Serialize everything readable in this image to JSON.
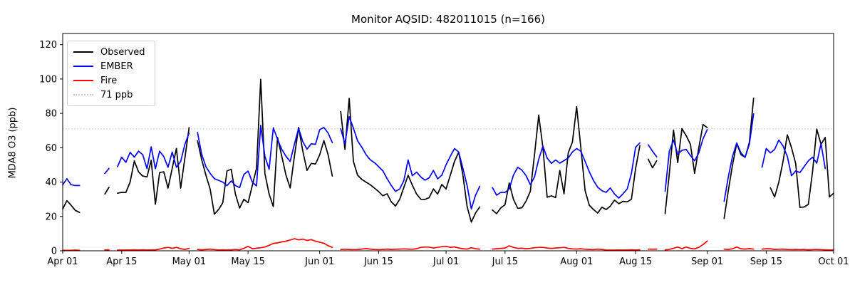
{
  "chart_data": {
    "type": "line",
    "title": "Monitor AQSID: 482011015 (n=166)",
    "xlabel": "",
    "ylabel": "MDA8 O3 (ppb)",
    "ylim": [
      0,
      126.5
    ],
    "yticks": [
      0,
      20,
      40,
      60,
      80,
      100,
      120
    ],
    "x_tick_labels": [
      "Apr 01",
      "Apr 15",
      "May 01",
      "May 15",
      "Jun 01",
      "Jun 15",
      "Jul 01",
      "Jul 15",
      "Aug 01",
      "Aug 15",
      "Sep 01",
      "Sep 15",
      "Oct 01"
    ],
    "x_tick_day_index": [
      0,
      14,
      30,
      44,
      61,
      75,
      91,
      105,
      122,
      136,
      153,
      167,
      183
    ],
    "x_total_days": 183,
    "x_start_label": "Apr 01",
    "x_end_label": "Oct 01",
    "grid": false,
    "legend_position": "upper left",
    "threshold": {
      "label": "71 ppb",
      "value": 71,
      "color": "#c9c9c9",
      "style": "dotted"
    },
    "series": [
      {
        "name": "Observed",
        "color": "#000000",
        "values": [
          24.4,
          29.2,
          26.5,
          23.5,
          22.3,
          null,
          null,
          null,
          null,
          null,
          33,
          37,
          null,
          33.5,
          34,
          34,
          40,
          52.3,
          46,
          43.5,
          43,
          52.7,
          27.1,
          45.5,
          46,
          36.5,
          48,
          59.6,
          36.5,
          54,
          71.7,
          null,
          64,
          53,
          44,
          36,
          21.3,
          24,
          28,
          46.5,
          47.5,
          33,
          24.9,
          30,
          28,
          38,
          48,
          99.8,
          45,
          33,
          25.8,
          66,
          55,
          44,
          36.6,
          55,
          71.8,
          58,
          46.8,
          50.9,
          50.5,
          55.9,
          64.2,
          55.9,
          43.5,
          null,
          81,
          59,
          88.7,
          52,
          44,
          41.5,
          40,
          38.5,
          36.5,
          34.5,
          32,
          33.2,
          28.5,
          26.1,
          30,
          37,
          44,
          38.2,
          33,
          30,
          29.9,
          31,
          36,
          33,
          38.6,
          36,
          44,
          52,
          57.4,
          44,
          25.7,
          16.7,
          22,
          25.5,
          null,
          null,
          23.7,
          21.6,
          25,
          26.8,
          39.5,
          30,
          24.7,
          25,
          29,
          34.6,
          56,
          79,
          60,
          31.2,
          32,
          31,
          46.8,
          33.2,
          57,
          63.3,
          83.9,
          60,
          35,
          26.5,
          24,
          22,
          25.4,
          24,
          26,
          29.5,
          27.4,
          28.8,
          28.5,
          30,
          48,
          61.1,
          null,
          53.3,
          48.3,
          52.4,
          null,
          21.6,
          45,
          70.3,
          51.3,
          71.1,
          67,
          62,
          45.1,
          60,
          73.5,
          71.7,
          null,
          null,
          null,
          18.8,
          35,
          50,
          62.4,
          56,
          54.4,
          63,
          88.9,
          null,
          null,
          null,
          36.6,
          31.3,
          40,
          52,
          67.5,
          60,
          50.7,
          25.3,
          25.5,
          27,
          46,
          70.9,
          62,
          66,
          31.3,
          33.5
        ]
      },
      {
        "name": "EMBER",
        "color": "#0000ff",
        "values": [
          38.5,
          41.9,
          38.5,
          38,
          38,
          null,
          null,
          null,
          null,
          null,
          45,
          48,
          null,
          49,
          54.5,
          51.5,
          57.3,
          54.5,
          58,
          56,
          47.8,
          60.5,
          47.8,
          58,
          54.8,
          48.6,
          57.5,
          48.6,
          52,
          62,
          68.5,
          null,
          68.9,
          56.2,
          49,
          45.1,
          42,
          41,
          40,
          37.9,
          40.7,
          38,
          36.8,
          44.4,
          46.4,
          40,
          37.8,
          73.1,
          55,
          47.5,
          71.6,
          65,
          59,
          55,
          52,
          62,
          71.3,
          63.5,
          59.2,
          62.3,
          62,
          70.5,
          71.8,
          68.5,
          63,
          null,
          71.1,
          62.3,
          78,
          71.4,
          64,
          60.3,
          56,
          53,
          51.3,
          49,
          46.5,
          42,
          38,
          34.6,
          36,
          41,
          52.9,
          43.7,
          45.8,
          43,
          41.1,
          42.5,
          46.8,
          41.9,
          44,
          50,
          55,
          59.5,
          57.5,
          48,
          38,
          24.4,
          32.3,
          37.5,
          null,
          null,
          36.8,
          32.4,
          34,
          34,
          36,
          44,
          48.6,
          47,
          43.7,
          38.5,
          43,
          53.3,
          61,
          54,
          50.9,
          52.9,
          51,
          52.5,
          54,
          57.5,
          59.5,
          58,
          52,
          46,
          40.9,
          37,
          35,
          34,
          36.6,
          33,
          30.7,
          33.2,
          36,
          45,
          60.3,
          62.8,
          null,
          61.7,
          58,
          54.7,
          null,
          34.6,
          58,
          64.5,
          56.2,
          58.5,
          59,
          55.4,
          52.4,
          57,
          65.2,
          70.5,
          null,
          null,
          null,
          28.8,
          43,
          55,
          62.8,
          57,
          54.4,
          62,
          79.7,
          null,
          48.6,
          59.5,
          57,
          59,
          64.5,
          61,
          55,
          43.7,
          46.5,
          45.6,
          49,
          52.4,
          54.5,
          51,
          62.4,
          47.9,
          null,
          null
        ]
      },
      {
        "name": "Fire",
        "color": "#ff0000",
        "values": [
          0.3,
          0.3,
          0.3,
          0.4,
          0.3,
          null,
          null,
          null,
          null,
          null,
          0.5,
          0.6,
          null,
          0.4,
          0.4,
          0.5,
          0.5,
          0.6,
          0.5,
          0.6,
          0.5,
          0.5,
          0.6,
          1.0,
          1.6,
          2.0,
          1.4,
          2.0,
          1.2,
          0.8,
          1.4,
          null,
          0.8,
          0.6,
          0.8,
          1.0,
          0.7,
          0.5,
          0.6,
          0.5,
          0.6,
          0.8,
          0.6,
          1.4,
          2.6,
          1.2,
          1.5,
          1.8,
          2.2,
          3.2,
          4.3,
          4.6,
          5.2,
          5.6,
          6.3,
          7.0,
          6.4,
          6.8,
          6.0,
          6.5,
          5.6,
          5.0,
          4.4,
          3.0,
          2.0,
          null,
          0.8,
          0.9,
          0.8,
          0.7,
          0.8,
          1.0,
          1.3,
          1.0,
          0.8,
          0.7,
          0.8,
          1.0,
          0.8,
          0.9,
          1.0,
          1.1,
          1.0,
          0.9,
          1.2,
          2.0,
          2.2,
          2.1,
          1.6,
          2.0,
          2.4,
          2.6,
          2.0,
          2.3,
          1.6,
          1.2,
          1.0,
          1.8,
          1.2,
          1.0,
          null,
          null,
          1.0,
          1.2,
          1.4,
          1.6,
          2.9,
          2.0,
          1.4,
          1.5,
          1.2,
          1.4,
          1.8,
          2.0,
          2.0,
          1.6,
          1.4,
          1.6,
          1.8,
          2.0,
          1.4,
          1.1,
          1.0,
          1.2,
          0.9,
          0.8,
          0.7,
          1.0,
          0.8,
          0.5,
          0.4,
          0.4,
          0.5,
          0.4,
          0.5,
          0.6,
          0.5,
          0.6,
          null,
          1.0,
          0.9,
          1.0,
          null,
          0.6,
          0.8,
          1.5,
          2.2,
          1.2,
          2.2,
          1.4,
          1.1,
          2.0,
          3.6,
          5.7,
          null,
          null,
          null,
          1.0,
          0.8,
          1.2,
          2.2,
          1.2,
          1.0,
          1.3,
          1.0,
          null,
          1.0,
          1.2,
          1.2,
          0.8,
          0.9,
          1.0,
          0.8,
          0.7,
          0.8,
          0.7,
          0.8,
          0.6,
          0.7,
          0.8,
          0.7,
          0.6,
          0.5,
          0.5
        ]
      }
    ]
  },
  "legend": {
    "items": [
      {
        "label": "Observed"
      },
      {
        "label": "EMBER"
      },
      {
        "label": "Fire"
      },
      {
        "label": "71 ppb"
      }
    ]
  },
  "layout_colors": {
    "background": "#ffffff",
    "spine": "#000000",
    "legend_border": "#cccccc"
  }
}
